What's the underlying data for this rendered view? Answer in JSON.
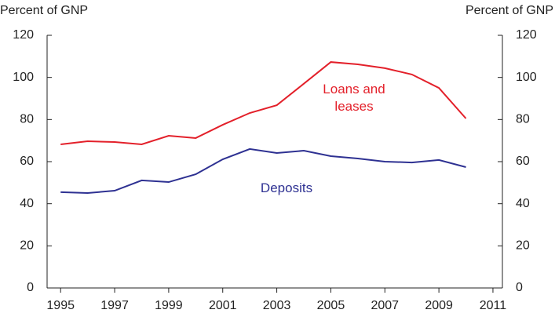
{
  "chart_data": {
    "type": "line",
    "y_label": "Percent of GNP",
    "y2_label": "Percent of GNP",
    "x": [
      1995,
      1996,
      1997,
      1998,
      1999,
      2000,
      2001,
      2002,
      2003,
      2004,
      2005,
      2006,
      2007,
      2008,
      2009,
      2010
    ],
    "series": [
      {
        "name": "Loans and leases",
        "color": "#e3202a",
        "values": [
          68.2,
          69.7,
          69.3,
          68.2,
          72.3,
          71.2,
          77.5,
          83.1,
          86.8,
          97,
          107.3,
          106.2,
          104.4,
          101.4,
          95,
          80.5
        ]
      },
      {
        "name": "Deposits",
        "color": "#2e3192",
        "values": [
          45.5,
          45.1,
          46.2,
          51.1,
          50.3,
          54,
          61.1,
          66,
          64.1,
          65.2,
          62.6,
          61.5,
          60,
          59.6,
          60.8,
          57.4
        ]
      }
    ],
    "xlim": [
      1994.5,
      2011.35
    ],
    "xticks": [
      1995,
      1997,
      1999,
      2001,
      2003,
      2005,
      2007,
      2009,
      2011
    ],
    "ylim": [
      0,
      120
    ],
    "yticks": [
      0,
      20,
      40,
      60,
      80,
      100,
      120
    ],
    "y2lim": [
      0,
      120
    ],
    "y2ticks": [
      0,
      20,
      40,
      60,
      80,
      100,
      120
    ]
  }
}
